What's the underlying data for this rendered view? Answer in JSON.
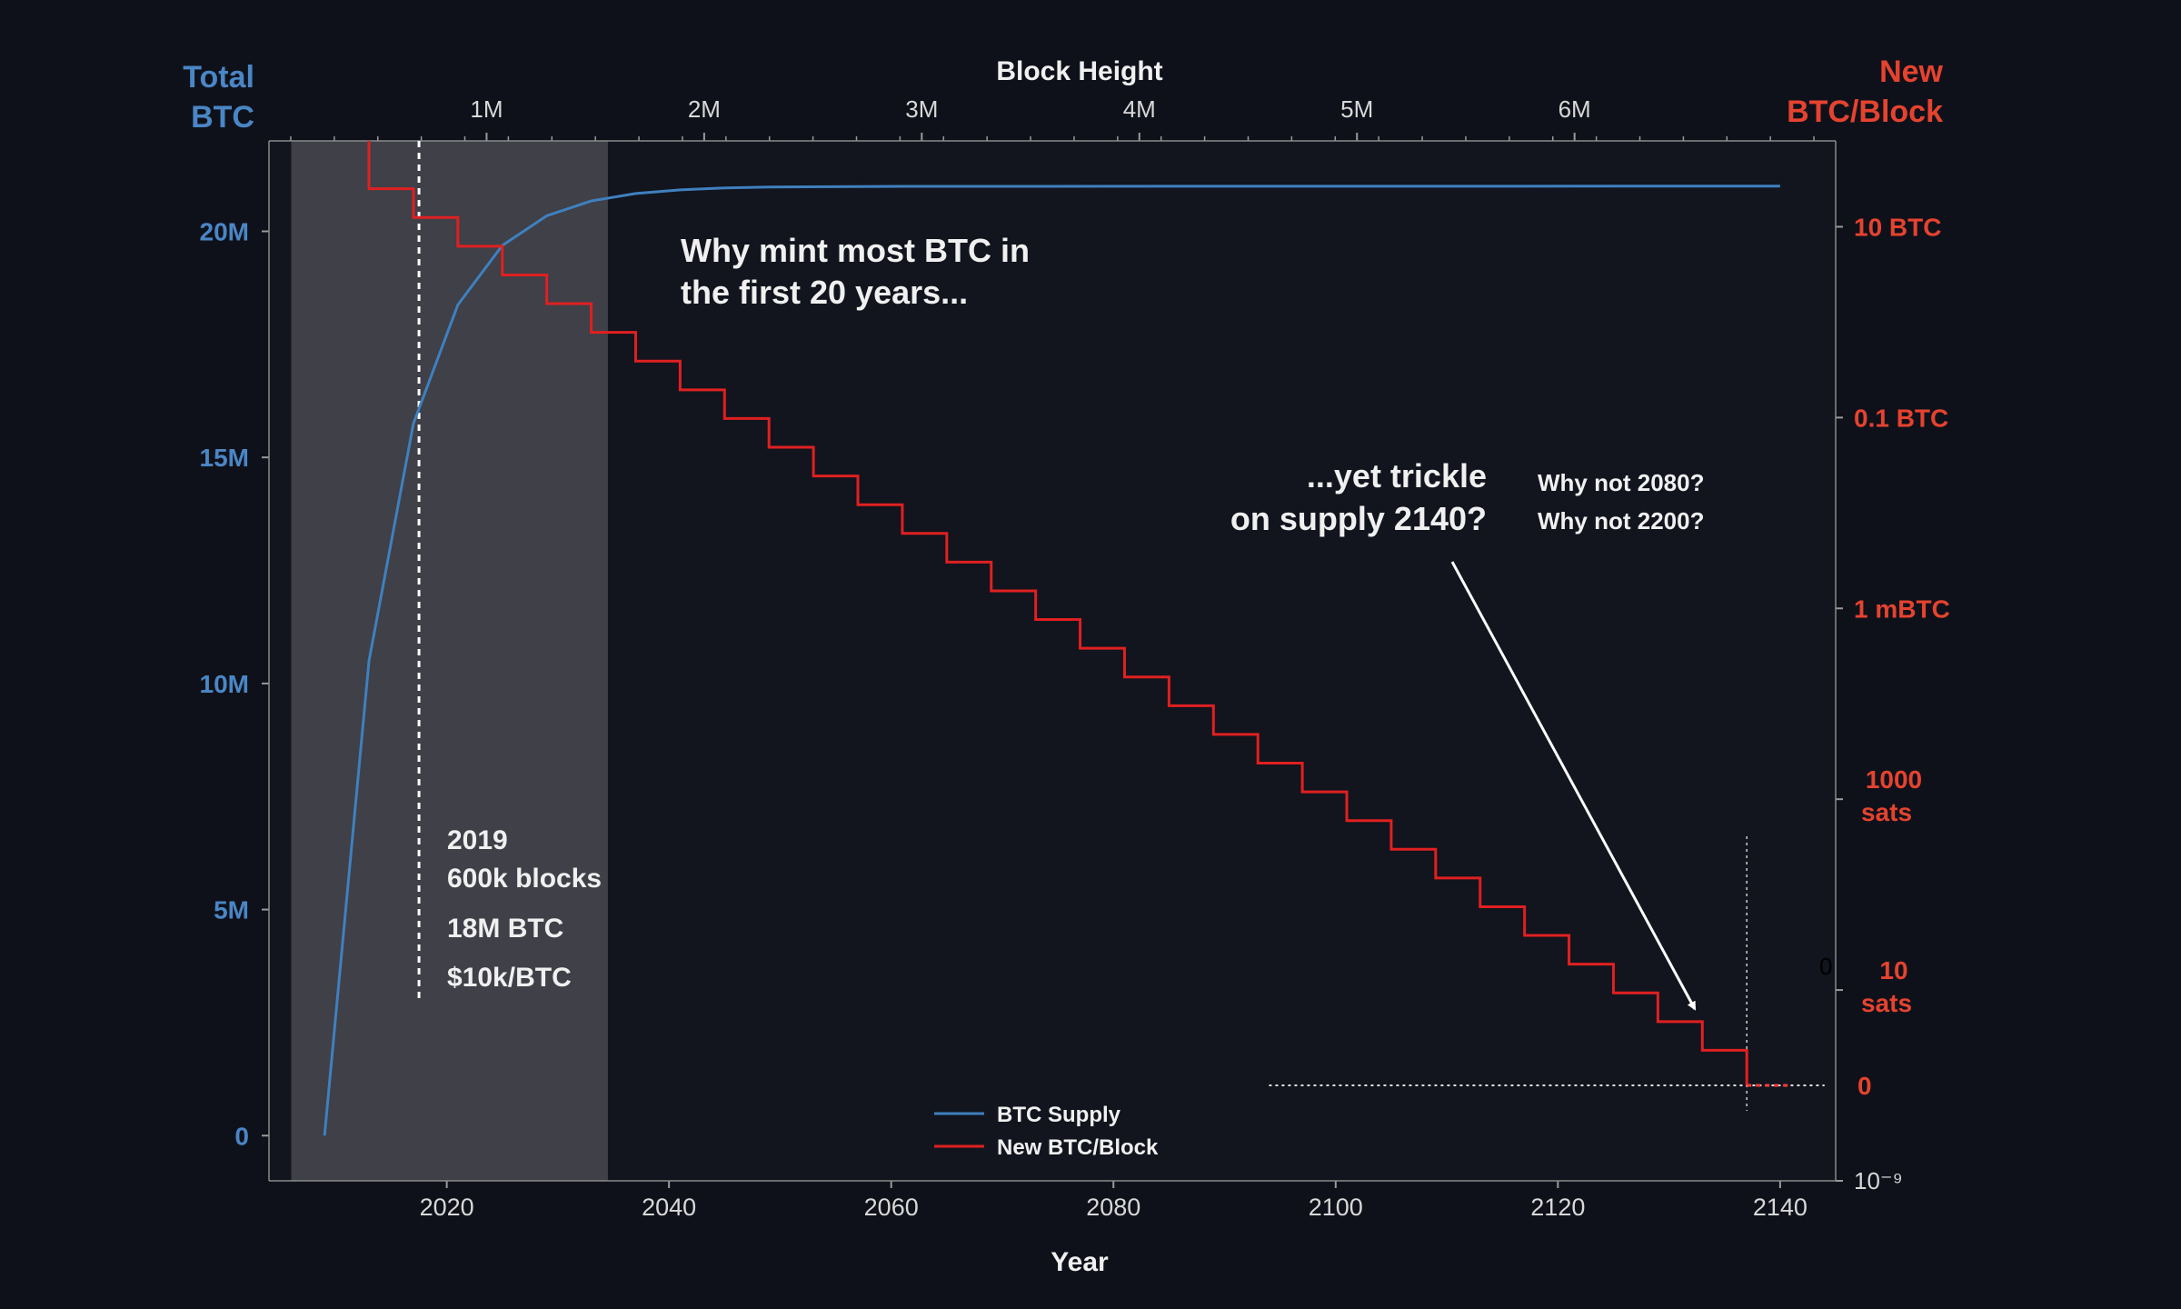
{
  "chart_data": {
    "type": "line",
    "title": "",
    "top_axis": {
      "label": "Block Height",
      "range": [
        0,
        7200000
      ],
      "ticks": [
        {
          "value": 1000000,
          "label": "1M"
        },
        {
          "value": 2000000,
          "label": "2M"
        },
        {
          "value": 3000000,
          "label": "3M"
        },
        {
          "value": 4000000,
          "label": "4M"
        },
        {
          "value": 5000000,
          "label": "5M"
        },
        {
          "value": 6000000,
          "label": "6M"
        }
      ]
    },
    "x_axis": {
      "label": "Year",
      "range": [
        2004,
        2145
      ],
      "ticks": [
        {
          "value": 2020,
          "label": "2020"
        },
        {
          "value": 2040,
          "label": "2040"
        },
        {
          "value": 2060,
          "label": "2060"
        },
        {
          "value": 2080,
          "label": "2080"
        },
        {
          "value": 2100,
          "label": "2100"
        },
        {
          "value": 2120,
          "label": "2120"
        },
        {
          "value": 2140,
          "label": "2140"
        }
      ]
    },
    "left_axis": {
      "label_line1": "Total",
      "label_line2": "BTC",
      "range": [
        -1000000,
        22000000
      ],
      "ticks": [
        {
          "value": 0,
          "label": "0"
        },
        {
          "value": 5000000,
          "label": "5M"
        },
        {
          "value": 10000000,
          "label": "10M"
        },
        {
          "value": 15000000,
          "label": "15M"
        },
        {
          "value": 20000000,
          "label": "20M"
        }
      ]
    },
    "right_axis": {
      "label_line1": "New",
      "label_line2": "BTC/Block",
      "scale": "log",
      "log10_range": [
        -9,
        1.9
      ],
      "ticks": [
        {
          "log10": 1,
          "line1": "10 BTC",
          "line2": ""
        },
        {
          "log10": -1,
          "line1": "0.1 BTC",
          "line2": ""
        },
        {
          "log10": -3,
          "line1": "1 mBTC",
          "line2": ""
        },
        {
          "log10": -5,
          "line1": "1000",
          "line2": "sats"
        },
        {
          "log10": -7,
          "line1": "10",
          "line2": "sats"
        }
      ],
      "zero_label": "0",
      "zero_log10": -8,
      "bottom_label": "10⁻⁹",
      "stray_label": "0"
    },
    "series": [
      {
        "name": "BTC Supply",
        "color": "#3f80bf",
        "axis": "left",
        "x": [
          2009,
          2013,
          2017,
          2021,
          2025,
          2029,
          2033,
          2037,
          2041,
          2045,
          2049,
          2061,
          2140
        ],
        "y": [
          0,
          10500000,
          15750000,
          18375000,
          19687500,
          20343750,
          20671875,
          20835938,
          20917969,
          20958984,
          20979492,
          20995000,
          21000000
        ]
      },
      {
        "name": "New BTC/Block",
        "color": "#e02020",
        "axis": "right",
        "start_year": 2013,
        "step_years": 4,
        "log10_values": [
          1.398,
          1.097,
          0.796,
          0.495,
          0.194,
          -0.107,
          -0.408,
          -0.709,
          -1.01,
          -1.311,
          -1.612,
          -1.913,
          -2.214,
          -2.515,
          -2.816,
          -3.117,
          -3.418,
          -3.719,
          -4.02,
          -4.321,
          -4.622,
          -4.923,
          -5.224,
          -5.525,
          -5.826,
          -6.127,
          -6.428,
          -6.729,
          -7.03,
          -7.331,
          -7.632
        ],
        "end_year": 2137,
        "tail_end_year": 2141
      }
    ],
    "shaded_region": {
      "x0": 2006,
      "x1": 2034.5,
      "color": "#3f4048"
    },
    "vline_2019": {
      "x": 2017.5
    },
    "vline_end": {
      "x": 2137
    },
    "hline_zero": {
      "x0": 2094,
      "x1": 2144
    },
    "annotations": {
      "question": [
        "Why mint most BTC in",
        "the first 20 years..."
      ],
      "trickle": [
        "...yet trickle",
        "on supply 2140?"
      ],
      "why_not": [
        "Why not 2080?",
        "Why not 2200?"
      ],
      "stats": [
        "2019",
        "600k blocks",
        "18M BTC",
        "$10k/BTC"
      ]
    },
    "legend": [
      {
        "label": "BTC Supply",
        "color": "#3f80bf"
      },
      {
        "label": "New BTC/Block",
        "color": "#e02020"
      }
    ]
  }
}
